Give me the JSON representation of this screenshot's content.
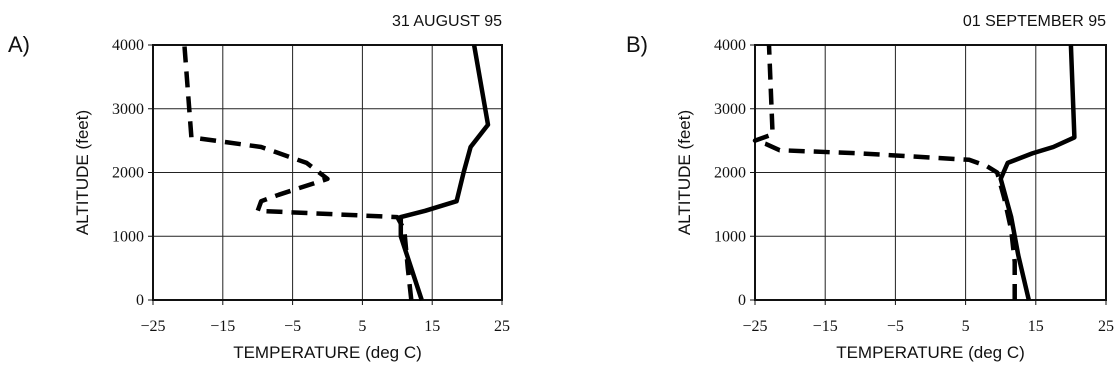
{
  "chart_data": [
    {
      "type": "line",
      "panel_label": "A)",
      "title": "31 AUGUST 95",
      "xlabel": "TEMPERATURE (deg C)",
      "ylabel": "ALTITUDE (feet)",
      "xlim": [
        -25,
        25
      ],
      "ylim": [
        0,
        4000
      ],
      "x_ticks": [
        -25,
        -15,
        -5,
        5,
        15,
        25
      ],
      "x_tick_labels": [
        "−25",
        "−15",
        "−5",
        "5",
        "15",
        "25"
      ],
      "y_ticks": [
        0,
        1000,
        2000,
        3000,
        4000
      ],
      "y_tick_labels": [
        "0",
        "1000",
        "2000",
        "3000",
        "4000"
      ],
      "grid": true,
      "series": [
        {
          "style": "solid",
          "points": [
            [
              13.5,
              0
            ],
            [
              10.5,
              1000
            ],
            [
              10.5,
              1300
            ],
            [
              14,
              1400
            ],
            [
              18.5,
              1550
            ],
            [
              19.5,
              2000
            ],
            [
              20.5,
              2400
            ],
            [
              23,
              2750
            ],
            [
              21,
              4000
            ]
          ]
        },
        {
          "style": "dashed",
          "points": [
            [
              12,
              0
            ],
            [
              11.5,
              500
            ],
            [
              11,
              1100
            ],
            [
              10,
              1300
            ],
            [
              -10,
              1400
            ],
            [
              -9.5,
              1550
            ],
            [
              -7,
              1650
            ],
            [
              0,
              1900
            ],
            [
              -3,
              2150
            ],
            [
              -9.5,
              2400
            ],
            [
              -19.5,
              2550
            ],
            [
              -20.5,
              4000
            ]
          ]
        }
      ]
    },
    {
      "type": "line",
      "panel_label": "B)",
      "title": "01 SEPTEMBER 95",
      "xlabel": "TEMPERATURE (deg C)",
      "ylabel": "ALTITUDE (feet)",
      "xlim": [
        -25,
        25
      ],
      "ylim": [
        0,
        4000
      ],
      "x_ticks": [
        -25,
        -15,
        -5,
        5,
        15,
        25
      ],
      "x_tick_labels": [
        "−25",
        "−15",
        "−5",
        "5",
        "15",
        "25"
      ],
      "y_ticks": [
        0,
        1000,
        2000,
        3000,
        4000
      ],
      "y_tick_labels": [
        "0",
        "1000",
        "2000",
        "3000",
        "4000"
      ],
      "grid": true,
      "series": [
        {
          "style": "solid",
          "points": [
            [
              14,
              0
            ],
            [
              12.5,
              700
            ],
            [
              11.5,
              1300
            ],
            [
              10,
              1900
            ],
            [
              11,
              2150
            ],
            [
              14.5,
              2300
            ],
            [
              17.5,
              2400
            ],
            [
              20.5,
              2550
            ],
            [
              20,
              4000
            ]
          ]
        },
        {
          "style": "dashed",
          "points": [
            [
              12,
              0
            ],
            [
              12,
              600
            ],
            [
              11.5,
              1100
            ],
            [
              10.5,
              1600
            ],
            [
              9.5,
              2000
            ],
            [
              8,
              2100
            ],
            [
              5.5,
              2200
            ],
            [
              -10,
              2300
            ],
            [
              -21.5,
              2350
            ],
            [
              -23.5,
              2450
            ],
            [
              -25,
              2500
            ],
            [
              -22.5,
              2600
            ],
            [
              -23,
              4000
            ]
          ]
        }
      ]
    }
  ]
}
